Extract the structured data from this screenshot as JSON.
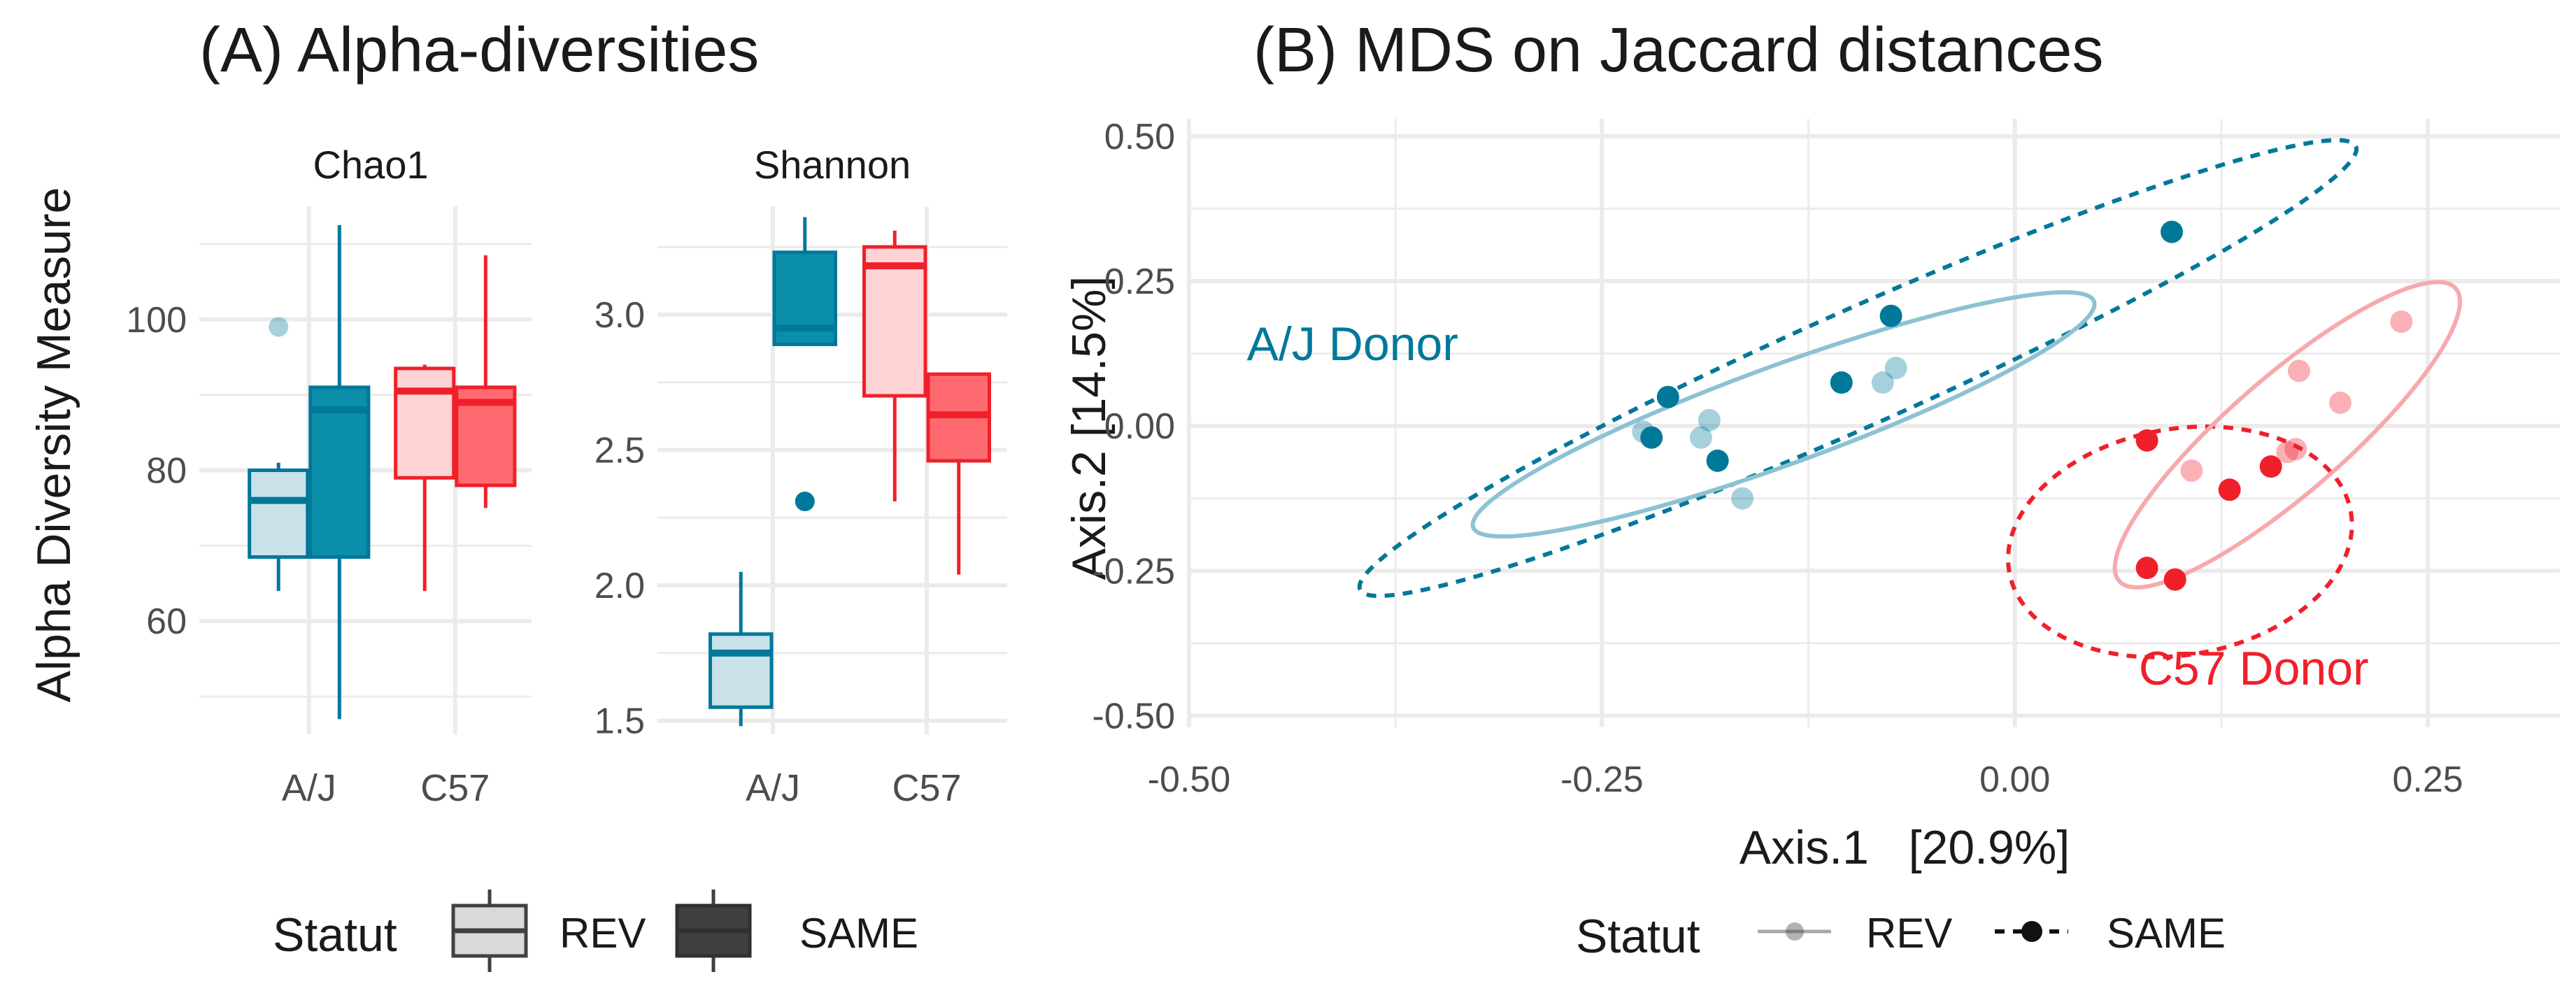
{
  "colors": {
    "aj": "#00789a",
    "c57": "#f0202a",
    "grid": "#ebebeb",
    "text": "#1a1a1a",
    "tick": "#4d4d4d",
    "legend_light": "#d9d9d9",
    "legend_dark": "#404040"
  },
  "chart_data": [
    {
      "panel": "A",
      "type": "box",
      "title": "(A) Alpha-diversities",
      "ylabel": "Alpha Diversity Measure",
      "categories": [
        "A/J",
        "C57"
      ],
      "groups": [
        "REV",
        "SAME"
      ],
      "facets": [
        {
          "name": "Chao1",
          "ylim": [
            45,
            115
          ],
          "yticks": [
            60,
            80,
            100
          ],
          "boxes": [
            {
              "category": "A/J",
              "group": "REV",
              "min": 64,
              "q1": 68.5,
              "median": 76,
              "q3": 80,
              "max": 81,
              "outliers": [
                99
              ]
            },
            {
              "category": "A/J",
              "group": "SAME",
              "min": 47,
              "q1": 68.5,
              "median": 88,
              "q3": 91,
              "max": 112.5,
              "outliers": []
            },
            {
              "category": "C57",
              "group": "REV",
              "min": 64,
              "q1": 79,
              "median": 90.5,
              "q3": 93.5,
              "max": 94,
              "outliers": []
            },
            {
              "category": "C57",
              "group": "SAME",
              "min": 75,
              "q1": 78,
              "median": 89,
              "q3": 91,
              "max": 108.5,
              "outliers": []
            }
          ]
        },
        {
          "name": "Shannon",
          "ylim": [
            1.45,
            3.4
          ],
          "yticks": [
            1.5,
            2.0,
            2.5,
            3.0
          ],
          "yticklabels": [
            "1.5",
            "2.0",
            "2.5",
            "3.0"
          ],
          "boxes": [
            {
              "category": "A/J",
              "group": "REV",
              "min": 1.48,
              "q1": 1.55,
              "median": 1.75,
              "q3": 1.82,
              "max": 2.05,
              "outliers": []
            },
            {
              "category": "A/J",
              "group": "SAME",
              "min": 2.89,
              "q1": 2.89,
              "median": 2.95,
              "q3": 3.23,
              "max": 3.36,
              "outliers": [
                2.31
              ]
            },
            {
              "category": "C57",
              "group": "REV",
              "min": 2.31,
              "q1": 2.7,
              "median": 3.18,
              "q3": 3.25,
              "max": 3.31,
              "outliers": []
            },
            {
              "category": "C57",
              "group": "SAME",
              "min": 2.04,
              "q1": 2.46,
              "median": 2.63,
              "q3": 2.78,
              "max": 2.78,
              "outliers": []
            }
          ]
        }
      ],
      "legend": {
        "title": "Statut",
        "entries": [
          "REV",
          "SAME"
        ],
        "position": "bottom"
      }
    },
    {
      "panel": "B",
      "type": "scatter",
      "title": "(B) MDS on Jaccard distances",
      "xlabel": "Axis.1   [20.9%]",
      "ylabel": "Axis.2   [14.5%]",
      "xlim": [
        -0.5,
        0.33
      ],
      "ylim": [
        -0.52,
        0.53
      ],
      "xticks": [
        -0.5,
        -0.25,
        0.0,
        0.25
      ],
      "xticklabels": [
        "-0.50",
        "-0.25",
        "0.00",
        "0.25"
      ],
      "yticks": [
        -0.5,
        -0.25,
        0.0,
        0.25,
        0.5
      ],
      "yticklabels": [
        "-0.50",
        "-0.25",
        "0.00",
        "0.25",
        "0.50"
      ],
      "series": [
        {
          "name": "A/J SAME",
          "donor": "A/J",
          "statut": "SAME",
          "points": [
            [
              -0.22,
              -0.02
            ],
            [
              -0.21,
              0.05
            ],
            [
              -0.18,
              -0.06
            ],
            [
              -0.105,
              0.075
            ],
            [
              -0.075,
              0.19
            ],
            [
              0.095,
              0.335
            ]
          ]
        },
        {
          "name": "A/J REV",
          "donor": "A/J",
          "statut": "REV",
          "points": [
            [
              -0.225,
              -0.01
            ],
            [
              -0.185,
              0.01
            ],
            [
              -0.19,
              -0.02
            ],
            [
              -0.165,
              -0.125
            ],
            [
              -0.08,
              0.075
            ],
            [
              -0.072,
              0.1
            ]
          ]
        },
        {
          "name": "C57 SAME",
          "donor": "C57",
          "statut": "SAME",
          "points": [
            [
              0.08,
              -0.025
            ],
            [
              0.13,
              -0.11
            ],
            [
              0.155,
              -0.07
            ],
            [
              0.08,
              -0.245
            ],
            [
              0.097,
              -0.265
            ]
          ]
        },
        {
          "name": "C57 REV",
          "donor": "C57",
          "statut": "REV",
          "points": [
            [
              0.107,
              -0.077
            ],
            [
              0.165,
              -0.045
            ],
            [
              0.17,
              -0.04
            ],
            [
              0.172,
              0.095
            ],
            [
              0.197,
              0.04
            ],
            [
              0.234,
              0.18
            ]
          ]
        }
      ],
      "ellipses": [
        {
          "name": "A/J SAME ellipse",
          "donor": "A/J",
          "statut": "SAME",
          "center": [
            -0.095,
            0.1
          ],
          "rx": 0.33,
          "ry": 0.1,
          "angle": 24
        },
        {
          "name": "A/J REV ellipse",
          "donor": "A/J",
          "statut": "REV",
          "center": [
            -0.14,
            0.02
          ],
          "rx": 0.2,
          "ry": 0.085,
          "angle": 20
        },
        {
          "name": "C57 SAME ellipse",
          "donor": "C57",
          "statut": "SAME",
          "center": [
            0.1,
            -0.2
          ],
          "rx": 0.105,
          "ry": 0.195,
          "angle": 10
        },
        {
          "name": "C57 REV ellipse",
          "donor": "C57",
          "statut": "REV",
          "center": [
            0.165,
            -0.015
          ],
          "rx": 0.135,
          "ry": 0.1,
          "angle": 41
        }
      ],
      "annotations": [
        {
          "text": "A/J Donor",
          "x": -0.465,
          "y": 0.14,
          "donor": "A/J"
        },
        {
          "text": "C57 Donor",
          "x": 0.075,
          "y": -0.42,
          "donor": "C57"
        }
      ],
      "legend": {
        "title": "Statut",
        "entries": [
          "REV",
          "SAME"
        ],
        "position": "bottom"
      }
    }
  ]
}
